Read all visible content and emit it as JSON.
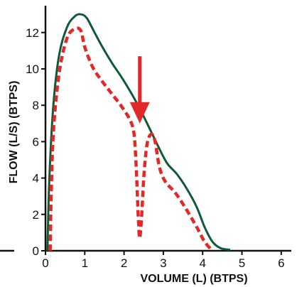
{
  "chart_data": {
    "type": "line",
    "title": "",
    "xlabel": "VOLUME (L) (BTPS)",
    "ylabel": "FLOW (L/S) (BTPS)",
    "xlim": [
      0,
      6.5
    ],
    "ylim": [
      0,
      13.5
    ],
    "x_ticks": [
      0,
      1,
      2,
      3,
      4,
      5,
      6
    ],
    "y_ticks": [
      0,
      2,
      4,
      6,
      8,
      10,
      12
    ],
    "grid": false,
    "series": [
      {
        "style": "solid",
        "color": "#0e5a36",
        "points": [
          [
            0.05,
            0
          ],
          [
            0.1,
            4
          ],
          [
            0.2,
            8
          ],
          [
            0.35,
            10.8
          ],
          [
            0.55,
            12.3
          ],
          [
            0.75,
            12.9
          ],
          [
            0.9,
            13.0
          ],
          [
            1.05,
            12.8
          ],
          [
            1.25,
            12.0
          ],
          [
            1.45,
            11.2
          ],
          [
            1.7,
            10.3
          ],
          [
            1.95,
            9.5
          ],
          [
            2.2,
            8.6
          ],
          [
            2.45,
            7.6
          ],
          [
            2.7,
            6.5
          ],
          [
            2.9,
            5.6
          ],
          [
            3.1,
            4.8
          ],
          [
            3.35,
            4.2
          ],
          [
            3.6,
            3.4
          ],
          [
            3.85,
            2.4
          ],
          [
            4.05,
            1.3
          ],
          [
            4.25,
            0.5
          ],
          [
            4.45,
            0.15
          ],
          [
            4.7,
            0.05
          ]
        ]
      },
      {
        "style": "dashed",
        "color": "#e02a2a",
        "points": [
          [
            0.12,
            0
          ],
          [
            0.14,
            2.5
          ],
          [
            0.2,
            6.5
          ],
          [
            0.35,
            9.8
          ],
          [
            0.55,
            11.7
          ],
          [
            0.75,
            12.2
          ],
          [
            0.9,
            12.1
          ],
          [
            1.0,
            11.2
          ],
          [
            1.2,
            10.1
          ],
          [
            1.45,
            9.3
          ],
          [
            1.7,
            8.6
          ],
          [
            1.95,
            7.9
          ],
          [
            2.15,
            7.2
          ],
          [
            2.25,
            6.5
          ],
          [
            2.3,
            5.0
          ],
          [
            2.34,
            3.0
          ],
          [
            2.37,
            1.5
          ],
          [
            2.4,
            0.7
          ],
          [
            2.45,
            2.0
          ],
          [
            2.5,
            4.0
          ],
          [
            2.58,
            5.8
          ],
          [
            2.68,
            6.4
          ],
          [
            2.78,
            6.1
          ],
          [
            2.9,
            4.6
          ],
          [
            3.05,
            3.8
          ],
          [
            3.3,
            3.2
          ],
          [
            3.55,
            2.4
          ],
          [
            3.85,
            1.3
          ],
          [
            4.05,
            0.5
          ],
          [
            4.25,
            0
          ]
        ]
      }
    ],
    "annotation": {
      "type": "arrow",
      "color": "#e02a2a",
      "x": 2.4,
      "y_tip": 7.0,
      "y_tail": 10.7
    }
  }
}
